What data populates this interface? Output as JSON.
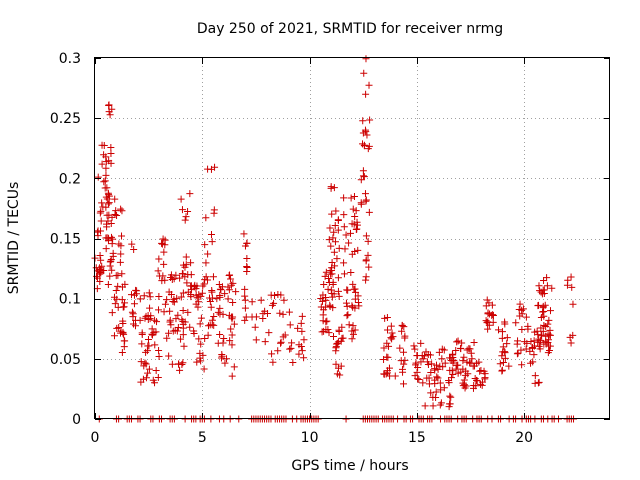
{
  "chart_data": {
    "type": "scatter",
    "title": "Day 250 of 2021, SRMTID for receiver nrmg",
    "xlabel": "GPS time / hours",
    "ylabel": "SRMTID / TECUs",
    "xlim": [
      0,
      24
    ],
    "ylim": [
      0,
      0.3
    ],
    "x_ticks": [
      0,
      5,
      10,
      15,
      20
    ],
    "x_tick_labels": [
      "0",
      "5",
      "10",
      "15",
      "20"
    ],
    "y_ticks": [
      0,
      0.05,
      0.1,
      0.15,
      0.2,
      0.25,
      0.3
    ],
    "y_tick_labels": [
      "0",
      "0.05",
      "0.1",
      "0.15",
      "0.2",
      "0.25",
      "0.3"
    ],
    "grid": true,
    "marker": "+",
    "color": "#cc0000",
    "series": [
      {
        "name": "SRMTID",
        "marker": "+",
        "clusters": [
          {
            "x_start": 0.0,
            "x_end": 0.3,
            "y_low": 0.085,
            "y_high": 0.14,
            "count": 12
          },
          {
            "x_start": 0.1,
            "x_end": 0.8,
            "y_low": 0.11,
            "y_high": 0.23,
            "count": 55
          },
          {
            "x_start": 0.5,
            "x_end": 0.8,
            "y_low": 0.2,
            "y_high": 0.265,
            "count": 12
          },
          {
            "x_start": 0.8,
            "x_end": 1.3,
            "y_low": 0.1,
            "y_high": 0.19,
            "count": 18
          },
          {
            "x_start": 0.8,
            "x_end": 1.4,
            "y_low": 0.06,
            "y_high": 0.125,
            "count": 20
          },
          {
            "x_start": 1.1,
            "x_end": 1.4,
            "y_low": 0.045,
            "y_high": 0.075,
            "count": 6
          },
          {
            "x_start": 1.7,
            "x_end": 2.0,
            "y_low": 0.07,
            "y_high": 0.155,
            "count": 14
          },
          {
            "x_start": 2.1,
            "x_end": 3.0,
            "y_low": 0.03,
            "y_high": 0.105,
            "count": 45
          },
          {
            "x_start": 2.9,
            "x_end": 3.3,
            "y_low": 0.085,
            "y_high": 0.15,
            "count": 15
          },
          {
            "x_start": 3.3,
            "x_end": 4.2,
            "y_low": 0.04,
            "y_high": 0.12,
            "count": 40
          },
          {
            "x_start": 4.0,
            "x_end": 4.5,
            "y_low": 0.07,
            "y_high": 0.19,
            "count": 28
          },
          {
            "x_start": 4.5,
            "x_end": 5.5,
            "y_low": 0.04,
            "y_high": 0.115,
            "count": 38
          },
          {
            "x_start": 5.1,
            "x_end": 5.6,
            "y_low": 0.1,
            "y_high": 0.22,
            "count": 14
          },
          {
            "x_start": 5.5,
            "x_end": 6.6,
            "y_low": 0.035,
            "y_high": 0.12,
            "count": 45
          },
          {
            "x_start": 6.9,
            "x_end": 7.1,
            "y_low": 0.08,
            "y_high": 0.155,
            "count": 14
          },
          {
            "x_start": 7.2,
            "x_end": 8.2,
            "y_low": 0.06,
            "y_high": 0.1,
            "count": 12
          },
          {
            "x_start": 8.2,
            "x_end": 9.3,
            "y_low": 0.045,
            "y_high": 0.105,
            "count": 22
          },
          {
            "x_start": 9.4,
            "x_end": 9.8,
            "y_low": 0.045,
            "y_high": 0.09,
            "count": 10
          },
          {
            "x_start": 10.5,
            "x_end": 11.2,
            "y_low": 0.07,
            "y_high": 0.125,
            "count": 30
          },
          {
            "x_start": 10.9,
            "x_end": 11.4,
            "y_low": 0.09,
            "y_high": 0.195,
            "count": 30
          },
          {
            "x_start": 11.1,
            "x_end": 11.5,
            "y_low": 0.03,
            "y_high": 0.075,
            "count": 15
          },
          {
            "x_start": 11.5,
            "x_end": 12.3,
            "y_low": 0.065,
            "y_high": 0.185,
            "count": 50
          },
          {
            "x_start": 12.4,
            "x_end": 12.8,
            "y_low": 0.16,
            "y_high": 0.3,
            "count": 25
          },
          {
            "x_start": 12.5,
            "x_end": 12.8,
            "y_low": 0.09,
            "y_high": 0.16,
            "count": 8
          },
          {
            "x_start": 13.4,
            "x_end": 14.0,
            "y_low": 0.035,
            "y_high": 0.085,
            "count": 22
          },
          {
            "x_start": 14.2,
            "x_end": 14.5,
            "y_low": 0.025,
            "y_high": 0.08,
            "count": 14
          },
          {
            "x_start": 14.8,
            "x_end": 15.3,
            "y_low": 0.03,
            "y_high": 0.065,
            "count": 16
          },
          {
            "x_start": 15.3,
            "x_end": 16.6,
            "y_low": 0.01,
            "y_high": 0.06,
            "count": 48
          },
          {
            "x_start": 16.6,
            "x_end": 17.7,
            "y_low": 0.025,
            "y_high": 0.065,
            "count": 42
          },
          {
            "x_start": 17.6,
            "x_end": 18.2,
            "y_low": 0.025,
            "y_high": 0.05,
            "count": 18
          },
          {
            "x_start": 18.2,
            "x_end": 18.6,
            "y_low": 0.07,
            "y_high": 0.1,
            "count": 16
          },
          {
            "x_start": 18.8,
            "x_end": 19.3,
            "y_low": 0.035,
            "y_high": 0.085,
            "count": 18
          },
          {
            "x_start": 19.6,
            "x_end": 20.2,
            "y_low": 0.04,
            "y_high": 0.1,
            "count": 20
          },
          {
            "x_start": 20.2,
            "x_end": 20.8,
            "y_low": 0.025,
            "y_high": 0.075,
            "count": 22
          },
          {
            "x_start": 20.6,
            "x_end": 21.3,
            "y_low": 0.06,
            "y_high": 0.12,
            "count": 35
          },
          {
            "x_start": 21.1,
            "x_end": 21.4,
            "y_low": 0.05,
            "y_high": 0.08,
            "count": 8
          },
          {
            "x_start": 22.0,
            "x_end": 22.3,
            "y_low": 0.06,
            "y_high": 0.12,
            "count": 8
          }
        ],
        "zero_values": {
          "y": 0,
          "x": [
            0.2,
            1.0,
            1.1,
            1.5,
            1.6,
            1.7,
            2.0,
            2.1,
            2.6,
            2.7,
            3.0,
            3.1,
            3.5,
            3.6,
            3.7,
            4.2,
            4.5,
            4.6,
            4.7,
            4.9,
            5.0,
            5.1,
            5.4,
            5.8,
            6.0,
            6.3,
            6.7,
            7.3,
            7.4,
            7.5,
            7.6,
            7.7,
            7.8,
            7.9,
            8.0,
            8.1,
            8.2,
            8.4,
            8.5,
            8.6,
            8.7,
            8.8,
            8.9,
            9.2,
            9.4,
            9.6,
            9.7,
            9.8,
            9.9,
            10.0,
            10.1,
            10.2,
            10.3,
            10.4,
            11.7,
            12.5,
            12.6,
            12.7,
            12.8,
            12.9,
            13.0,
            13.1,
            13.2,
            13.4,
            13.5,
            13.6,
            13.7,
            13.8,
            13.9,
            14.1,
            14.4,
            14.5,
            14.7,
            14.8,
            15.1,
            15.2,
            15.3,
            15.5,
            15.6,
            15.7,
            16.1,
            16.3,
            16.4,
            16.5,
            16.6,
            16.9,
            17.1,
            17.2,
            17.3,
            17.6,
            17.8,
            17.9,
            18.0,
            18.3,
            18.5,
            18.8,
            18.9,
            19.3,
            19.5,
            19.6,
            19.9,
            20.1,
            20.2,
            20.3,
            20.5,
            20.8,
            20.9,
            21.1,
            21.3,
            21.4,
            21.6,
            22.0,
            22.1,
            22.2,
            22.3
          ]
        }
      }
    ]
  }
}
